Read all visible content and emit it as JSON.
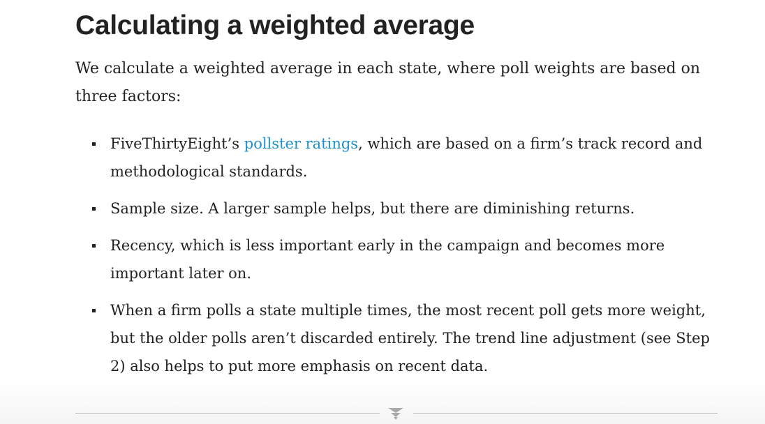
{
  "article": {
    "heading": "Calculating a weighted average",
    "intro": "We calculate a weighted average in each state, where poll weights are based on three factors:",
    "bullets": [
      {
        "before": "FiveThirtyEight’s ",
        "link": "pollster ratings",
        "after": ", which are based on a firm’s track record and methodological standards."
      },
      {
        "text": "Sample size. A larger sample helps, but there are diminishing returns."
      },
      {
        "text": "Recency, which is less important early in the campaign and becomes more important later on."
      },
      {
        "text": "When a firm polls a state multiple times, the most recent poll gets more weight, but the older polls aren’t discarded entirely. The trend line adjustment (see Step 2) also helps to put more emphasis on recent data."
      }
    ]
  },
  "colors": {
    "text": "#222222",
    "link": "#1e8fca",
    "rule": "#b9b9b9"
  },
  "footer": {
    "expander_icon": "chevron-down-icon"
  }
}
